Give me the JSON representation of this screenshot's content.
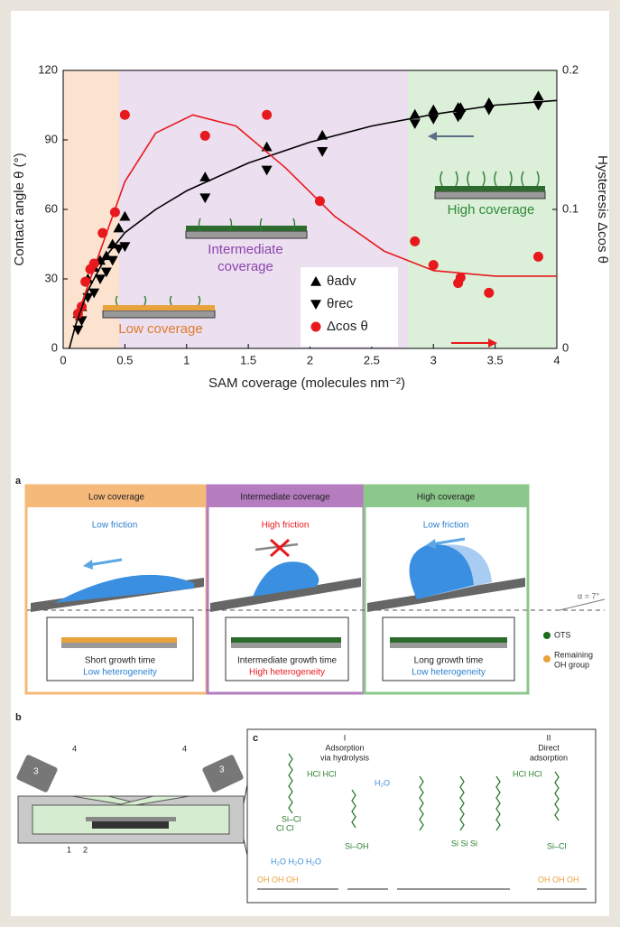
{
  "chart_data": {
    "type": "scatter",
    "x_label": "SAM coverage (molecules nm⁻²)",
    "y_label": "Contact angle θ (°)",
    "y2_label": "Hysteresis Δcos θ",
    "xlim": [
      0,
      4
    ],
    "ylim": [
      0,
      120
    ],
    "y2lim": [
      0,
      0.2
    ],
    "xticks": [
      0,
      0.5,
      1,
      1.5,
      2,
      2.5,
      3,
      3.5,
      4
    ],
    "yticks": [
      0,
      30,
      60,
      90,
      120
    ],
    "y2ticks": [
      0,
      0.1,
      0.2
    ],
    "annotations": [
      "Low coverage",
      "Intermediate",
      "coverage",
      "High coverage"
    ],
    "series": [
      {
        "name": "θadv",
        "color": "#000000",
        "marker": "triangle-up",
        "x": [
          0.12,
          0.15,
          0.2,
          0.25,
          0.3,
          0.35,
          0.4,
          0.45,
          0.5,
          1.15,
          1.65,
          2.1,
          2.85,
          3,
          3.2,
          3.22,
          3.45,
          3.85
        ],
        "values": [
          15,
          18,
          30,
          35,
          38,
          40,
          45,
          52,
          57,
          74,
          87,
          92,
          101,
          103,
          104,
          104,
          106,
          109
        ]
      },
      {
        "name": "θrec",
        "color": "#000000",
        "marker": "triangle-down",
        "x": [
          0.12,
          0.15,
          0.2,
          0.25,
          0.3,
          0.35,
          0.4,
          0.45,
          0.5,
          1.15,
          1.65,
          2.1,
          2.85,
          3,
          3.2,
          3.22,
          3.45,
          3.85
        ],
        "values": [
          8,
          12,
          22,
          24,
          30,
          33,
          38,
          43,
          44,
          65,
          77,
          85,
          97,
          99,
          100,
          101,
          103,
          105
        ]
      },
      {
        "name": "Δcos θ",
        "color": "#e8191d",
        "marker": "circle",
        "axis": "y2",
        "x": [
          0.12,
          0.15,
          0.18,
          0.22,
          0.25,
          0.32,
          0.42,
          0.5,
          1.15,
          1.65,
          2.08,
          2.85,
          3,
          3.2,
          3.22,
          3.45,
          3.85
        ],
        "values": [
          0.025,
          0.03,
          0.048,
          0.057,
          0.061,
          0.083,
          0.098,
          0.168,
          0.153,
          0.168,
          0.106,
          0.077,
          0.06,
          0.047,
          0.051,
          0.04,
          0.066
        ]
      }
    ]
  },
  "panel_a": {
    "label": "a",
    "columns": [
      {
        "header": "Low coverage",
        "friction": "Low friction",
        "growth": "Short growth time",
        "heterogeneity": "Low heterogeneity"
      },
      {
        "header": "Intermediate coverage",
        "friction": "High friction",
        "growth": "Intermediate growth time",
        "heterogeneity": "High heterogeneity"
      },
      {
        "header": "High coverage",
        "friction": "Low friction",
        "growth": "Long growth time",
        "heterogeneity": "Low heterogeneity"
      }
    ],
    "legend": [
      "OTS",
      "Remaining",
      "OH group"
    ],
    "angle": "α = 7°"
  },
  "panel_b": {
    "label": "b",
    "callouts": [
      "3",
      "4",
      "4",
      "3",
      "1",
      "2"
    ]
  },
  "panel_c": {
    "label": "c",
    "step1": [
      "I",
      "Adsorption",
      "via hydrolysis"
    ],
    "step2": [
      "II",
      "Direct",
      "adsorption"
    ],
    "chem": [
      "Si–Cl",
      "Cl  Cl",
      "HCl HCl",
      "Si–OH",
      "H₂O",
      "H₂O  H₂O  H₂O",
      "OH OH OH",
      "Si    Si    Si",
      "HCl HCl",
      "Si–Cl"
    ]
  }
}
